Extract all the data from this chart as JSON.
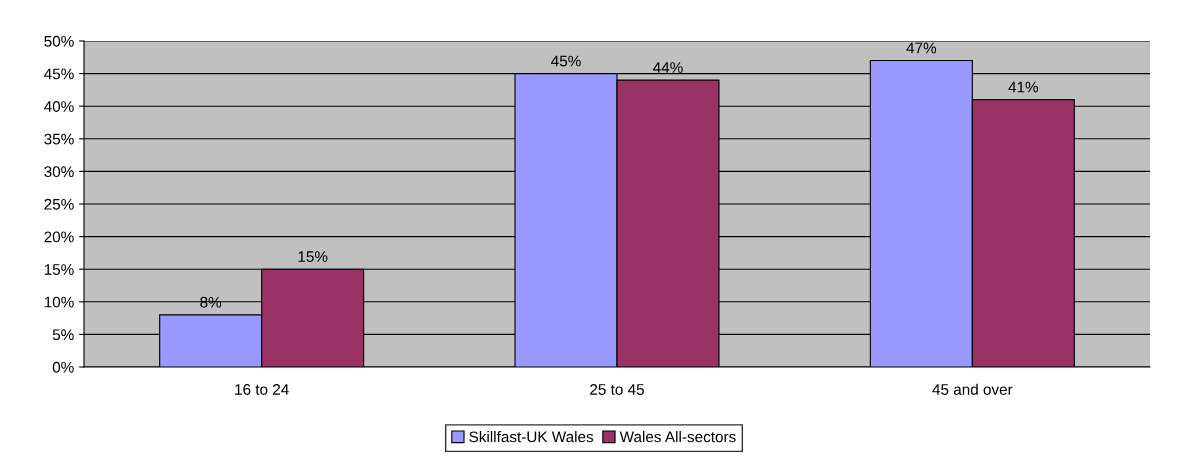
{
  "chart_data": {
    "type": "bar",
    "categories": [
      "16 to 24",
      "25 to 45",
      "45 and over"
    ],
    "series": [
      {
        "name": "Skillfast-UK Wales",
        "color": "#9999ff",
        "values": [
          8,
          45,
          47
        ],
        "value_labels": [
          "8%",
          "45%",
          "47%"
        ]
      },
      {
        "name": "Wales All-sectors",
        "color": "#993366",
        "values": [
          15,
          44,
          41
        ],
        "value_labels": [
          "15%",
          "44%",
          "41%"
        ]
      }
    ],
    "ylim": [
      0,
      50
    ],
    "yticks": [
      {
        "value": 0,
        "label": "0%"
      },
      {
        "value": 5,
        "label": "5%"
      },
      {
        "value": 10,
        "label": "10%"
      },
      {
        "value": 15,
        "label": "15%"
      },
      {
        "value": 20,
        "label": "20%"
      },
      {
        "value": 25,
        "label": "25%"
      },
      {
        "value": 30,
        "label": "30%"
      },
      {
        "value": 35,
        "label": "35%"
      },
      {
        "value": 40,
        "label": "40%"
      },
      {
        "value": 45,
        "label": "45%"
      },
      {
        "value": 50,
        "label": "50%"
      }
    ],
    "grid": "y",
    "legend": "bottom"
  }
}
